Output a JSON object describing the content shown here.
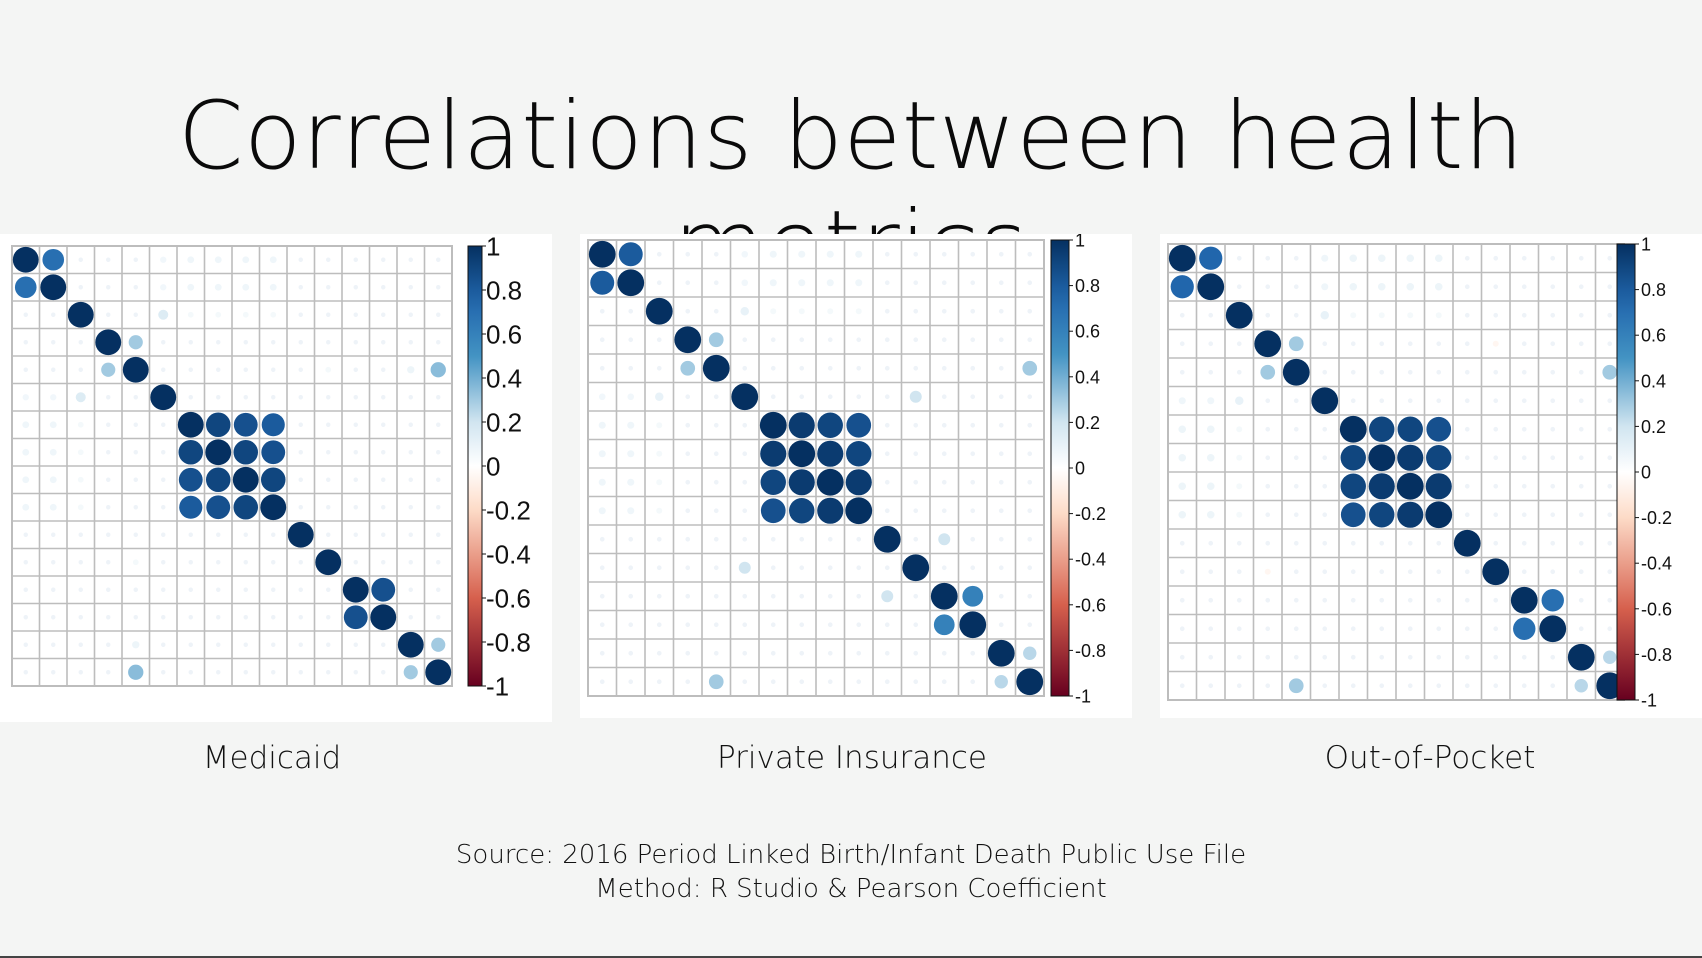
{
  "slide": {
    "title": "Correlations between health metrics",
    "source_line": "Source: 2016 Period Linked Birth/Infant Death Public Use File",
    "method_line": "Method: R Studio & Pearson Coefficient"
  },
  "colors": {
    "strong_positive": "#0b3a6e",
    "positive": "#2f6fb0",
    "light_positive": "#9ecae1",
    "neutral": "#ffffff",
    "negative": "#d6604d",
    "strong_negative": "#67001f",
    "grid": "#bdbdbd"
  },
  "chart_data": [
    {
      "type": "heatmap",
      "subtype": "corrplot-circle",
      "caption": "Medicaid",
      "n_vars": 16,
      "colorbar_ticks": [
        "1",
        "0.8",
        "0.6",
        "0.4",
        "0.2",
        "0",
        "-0.2",
        "-0.4",
        "-0.6",
        "-0.8",
        "-1"
      ],
      "colorbar_range": [
        -1,
        1
      ],
      "correlations": [
        {
          "i": 0,
          "j": 1,
          "r": 0.7
        },
        {
          "i": 2,
          "j": 5,
          "r": 0.15
        },
        {
          "i": 3,
          "j": 4,
          "r": 0.3
        },
        {
          "i": 4,
          "j": 15,
          "r": 0.35
        },
        {
          "i": 6,
          "j": 7,
          "r": 0.9
        },
        {
          "i": 6,
          "j": 8,
          "r": 0.85
        },
        {
          "i": 6,
          "j": 9,
          "r": 0.8
        },
        {
          "i": 7,
          "j": 8,
          "r": 0.9
        },
        {
          "i": 7,
          "j": 9,
          "r": 0.85
        },
        {
          "i": 8,
          "j": 9,
          "r": 0.9
        },
        {
          "i": 12,
          "j": 13,
          "r": 0.85
        },
        {
          "i": 14,
          "j": 15,
          "r": 0.3
        },
        {
          "i": 4,
          "j": 14,
          "r": 0.08
        },
        {
          "i": 4,
          "j": 15,
          "r": 0.35
        },
        {
          "i": 11,
          "j": 4,
          "r": 0.05
        },
        {
          "i": 0,
          "j": 5,
          "r": 0.06
        },
        {
          "i": 0,
          "j": 6,
          "r": 0.07
        },
        {
          "i": 0,
          "j": 7,
          "r": 0.07
        },
        {
          "i": 0,
          "j": 8,
          "r": 0.07
        },
        {
          "i": 0,
          "j": 9,
          "r": 0.07
        },
        {
          "i": 1,
          "j": 5,
          "r": 0.06
        },
        {
          "i": 1,
          "j": 6,
          "r": 0.07
        },
        {
          "i": 1,
          "j": 7,
          "r": 0.07
        },
        {
          "i": 1,
          "j": 8,
          "r": 0.07
        },
        {
          "i": 1,
          "j": 9,
          "r": 0.07
        },
        {
          "i": 2,
          "j": 6,
          "r": 0.05
        },
        {
          "i": 2,
          "j": 7,
          "r": 0.05
        },
        {
          "i": 2,
          "j": 8,
          "r": 0.05
        },
        {
          "i": 2,
          "j": 9,
          "r": 0.05
        }
      ]
    },
    {
      "type": "heatmap",
      "subtype": "corrplot-circle",
      "caption": "Private Insurance",
      "n_vars": 16,
      "colorbar_ticks": [
        "1",
        "0.8",
        "0.6",
        "0.4",
        "0.2",
        "0",
        "-0.2",
        "-0.4",
        "-0.6",
        "-0.8",
        "-1"
      ],
      "colorbar_range": [
        -1,
        1
      ],
      "correlations": [
        {
          "i": 0,
          "j": 1,
          "r": 0.8
        },
        {
          "i": 2,
          "j": 5,
          "r": 0.1
        },
        {
          "i": 3,
          "j": 4,
          "r": 0.3
        },
        {
          "i": 4,
          "j": 15,
          "r": 0.3
        },
        {
          "i": 6,
          "j": 7,
          "r": 0.95
        },
        {
          "i": 6,
          "j": 8,
          "r": 0.9
        },
        {
          "i": 6,
          "j": 9,
          "r": 0.85
        },
        {
          "i": 7,
          "j": 8,
          "r": 0.95
        },
        {
          "i": 7,
          "j": 9,
          "r": 0.9
        },
        {
          "i": 8,
          "j": 9,
          "r": 0.95
        },
        {
          "i": 12,
          "j": 13,
          "r": 0.6
        },
        {
          "i": 14,
          "j": 15,
          "r": 0.25
        },
        {
          "i": 10,
          "j": 12,
          "r": 0.2
        },
        {
          "i": 11,
          "j": 5,
          "r": 0.2
        },
        {
          "i": 0,
          "j": 5,
          "r": 0.06
        },
        {
          "i": 0,
          "j": 6,
          "r": 0.07
        },
        {
          "i": 0,
          "j": 7,
          "r": 0.07
        },
        {
          "i": 0,
          "j": 8,
          "r": 0.07
        },
        {
          "i": 0,
          "j": 9,
          "r": 0.07
        },
        {
          "i": 1,
          "j": 5,
          "r": 0.06
        },
        {
          "i": 1,
          "j": 6,
          "r": 0.07
        },
        {
          "i": 1,
          "j": 7,
          "r": 0.07
        },
        {
          "i": 1,
          "j": 8,
          "r": 0.07
        },
        {
          "i": 1,
          "j": 9,
          "r": 0.07
        },
        {
          "i": 2,
          "j": 6,
          "r": 0.05
        },
        {
          "i": 2,
          "j": 7,
          "r": 0.05
        },
        {
          "i": 2,
          "j": 8,
          "r": 0.05
        },
        {
          "i": 2,
          "j": 9,
          "r": 0.05
        }
      ]
    },
    {
      "type": "heatmap",
      "subtype": "corrplot-circle",
      "caption": "Out-of-Pocket",
      "n_vars": 16,
      "colorbar_ticks": [
        "1",
        "0.8",
        "0.6",
        "0.4",
        "0.2",
        "0",
        "-0.2",
        "-0.4",
        "-0.6",
        "-0.8",
        "-1"
      ],
      "colorbar_range": [
        -1,
        1
      ],
      "correlations": [
        {
          "i": 0,
          "j": 1,
          "r": 0.75
        },
        {
          "i": 2,
          "j": 5,
          "r": 0.1
        },
        {
          "i": 3,
          "j": 4,
          "r": 0.3
        },
        {
          "i": 4,
          "j": 15,
          "r": 0.3
        },
        {
          "i": 6,
          "j": 7,
          "r": 0.9
        },
        {
          "i": 6,
          "j": 8,
          "r": 0.9
        },
        {
          "i": 6,
          "j": 9,
          "r": 0.85
        },
        {
          "i": 7,
          "j": 8,
          "r": 0.95
        },
        {
          "i": 7,
          "j": 9,
          "r": 0.9
        },
        {
          "i": 8,
          "j": 9,
          "r": 0.95
        },
        {
          "i": 12,
          "j": 13,
          "r": 0.7
        },
        {
          "i": 14,
          "j": 15,
          "r": 0.25
        },
        {
          "i": 11,
          "j": 3,
          "r": -0.05
        },
        {
          "i": 0,
          "j": 5,
          "r": 0.07
        },
        {
          "i": 0,
          "j": 6,
          "r": 0.08
        },
        {
          "i": 0,
          "j": 7,
          "r": 0.08
        },
        {
          "i": 0,
          "j": 8,
          "r": 0.08
        },
        {
          "i": 0,
          "j": 9,
          "r": 0.08
        },
        {
          "i": 1,
          "j": 5,
          "r": 0.07
        },
        {
          "i": 1,
          "j": 6,
          "r": 0.08
        },
        {
          "i": 1,
          "j": 7,
          "r": 0.08
        },
        {
          "i": 1,
          "j": 8,
          "r": 0.08
        },
        {
          "i": 1,
          "j": 9,
          "r": 0.08
        },
        {
          "i": 2,
          "j": 6,
          "r": 0.05
        },
        {
          "i": 2,
          "j": 7,
          "r": 0.05
        },
        {
          "i": 2,
          "j": 8,
          "r": 0.05
        },
        {
          "i": 2,
          "j": 9,
          "r": 0.05
        }
      ]
    }
  ]
}
